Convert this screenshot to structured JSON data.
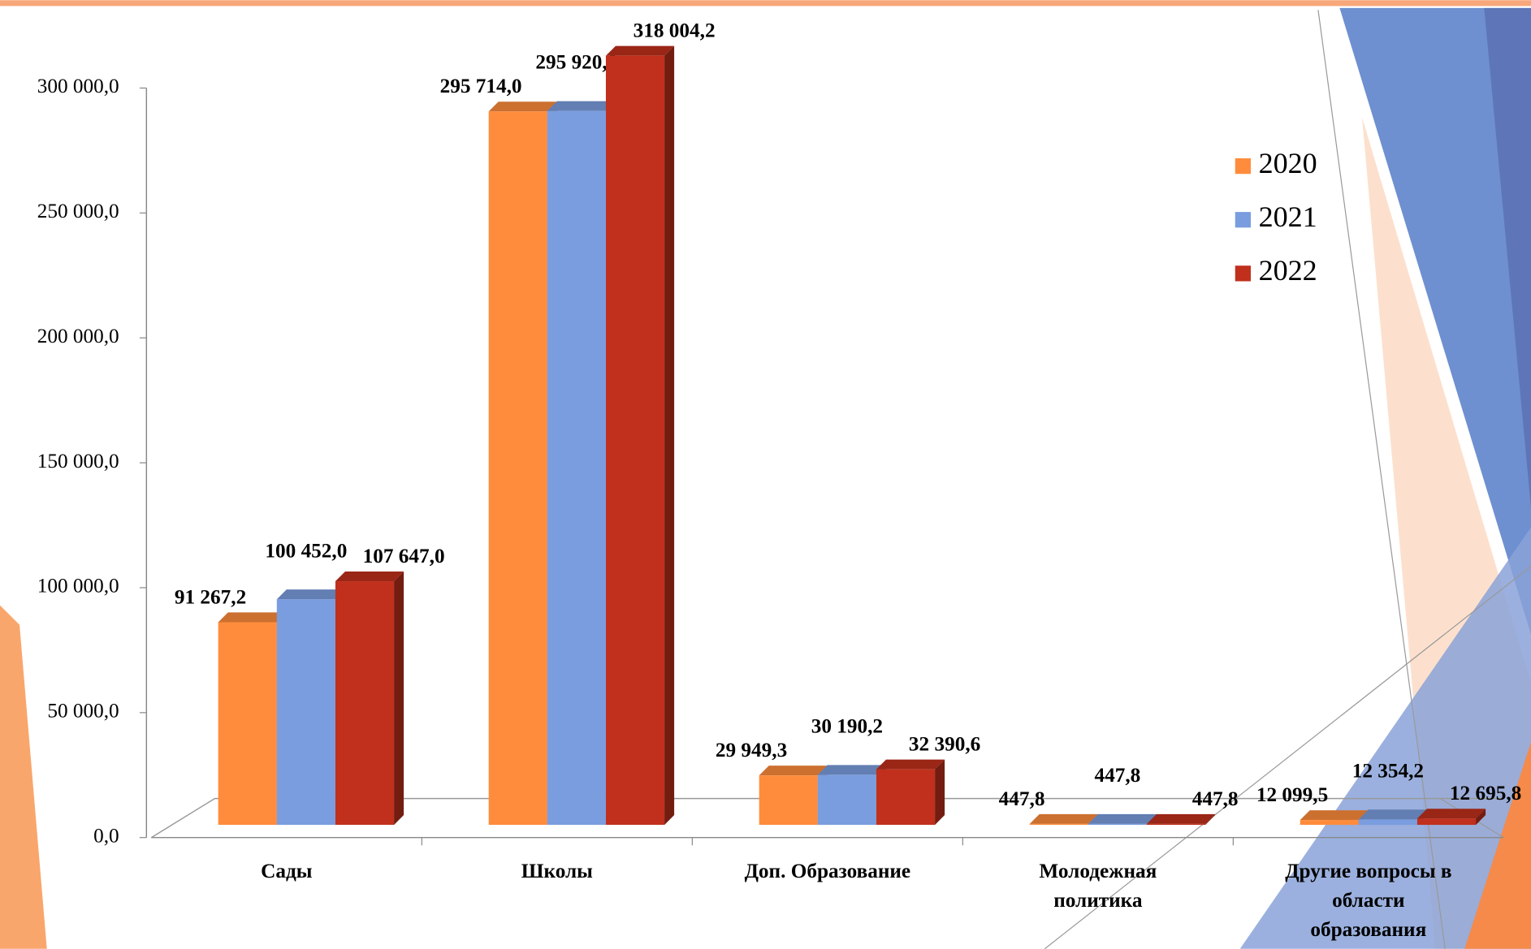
{
  "chart_data": {
    "type": "bar3d",
    "categories": [
      "Сады",
      "Школы",
      "Доп. Образование",
      "Молодежная политика",
      "Другие вопросы в области образования"
    ],
    "series": [
      {
        "name": "2020",
        "color": "#ff8c3c",
        "values": [
          91267.2,
          295714.0,
          29949.3,
          447.8,
          12099.5
        ],
        "value_labels": [
          "91 267,2",
          "295 714,0",
          "29 949,3",
          "447,8",
          "12 099,5"
        ]
      },
      {
        "name": "2021",
        "color": "#7a9ddf",
        "values": [
          100452.0,
          295920.8,
          30190.2,
          447.8,
          12354.2
        ],
        "value_labels": [
          "100 452,0",
          "295 920,8",
          "30 190,2",
          "447,8",
          "12 354,2"
        ]
      },
      {
        "name": "2022",
        "color": "#c0301c",
        "values": [
          107647.0,
          318004.2,
          32390.6,
          447.8,
          12695.8
        ],
        "value_labels": [
          "107 647,0",
          "318 004,2",
          "32 390,6",
          "447,8",
          "12 695,8"
        ]
      }
    ],
    "ylim": [
      0,
      300000
    ],
    "yticks": [
      {
        "value": 0,
        "label": "0,0"
      },
      {
        "value": 50000,
        "label": "50 000,0"
      },
      {
        "value": 100000,
        "label": "100 000,0"
      },
      {
        "value": 150000,
        "label": "150 000,0"
      },
      {
        "value": 200000,
        "label": "200 000,0"
      },
      {
        "value": 250000,
        "label": "250 000,0"
      },
      {
        "value": 300000,
        "label": "300 000,0"
      }
    ],
    "legend": "right"
  }
}
